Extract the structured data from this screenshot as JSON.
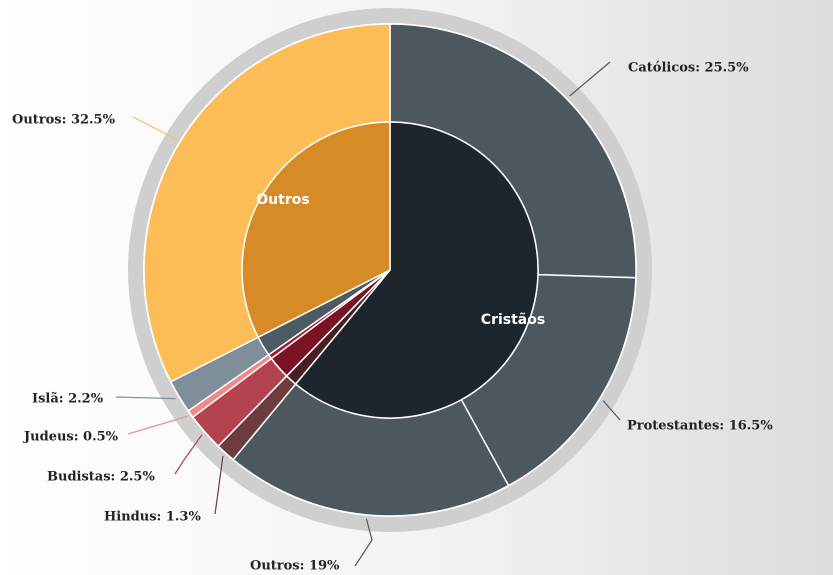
{
  "chart_data": {
    "type": "sunburst",
    "outer": {
      "values": [
        25.5,
        16.5,
        19,
        1.3,
        2.5,
        0.5,
        2.2,
        32.5
      ],
      "value_labels": [
        "Católicos: 25.5%",
        "Protestantes: 16.5%",
        "Outros: 19%",
        "Hindus: 1.3%",
        "Budistas: 2.5%",
        "Judeus: 0.5%",
        "Islã: 2.2%",
        "Outros: 32.5%"
      ],
      "colors": [
        "#4c575e",
        "#4c575e",
        "#4c575e",
        "#6e3b3e",
        "#b5424f",
        "#f08a8a",
        "#7f8f99",
        "#fdbd56"
      ]
    },
    "inner": {
      "categories": [
        "Cristãos",
        null,
        null,
        null,
        null,
        "Outros"
      ],
      "values": [
        61,
        1.3,
        2.5,
        0.5,
        2.2,
        32.5
      ],
      "colors": [
        "#1d262c",
        "#4a1f22",
        "#7a1424",
        "#a01830",
        "#4c5a63",
        "#d68b27"
      ]
    }
  }
}
